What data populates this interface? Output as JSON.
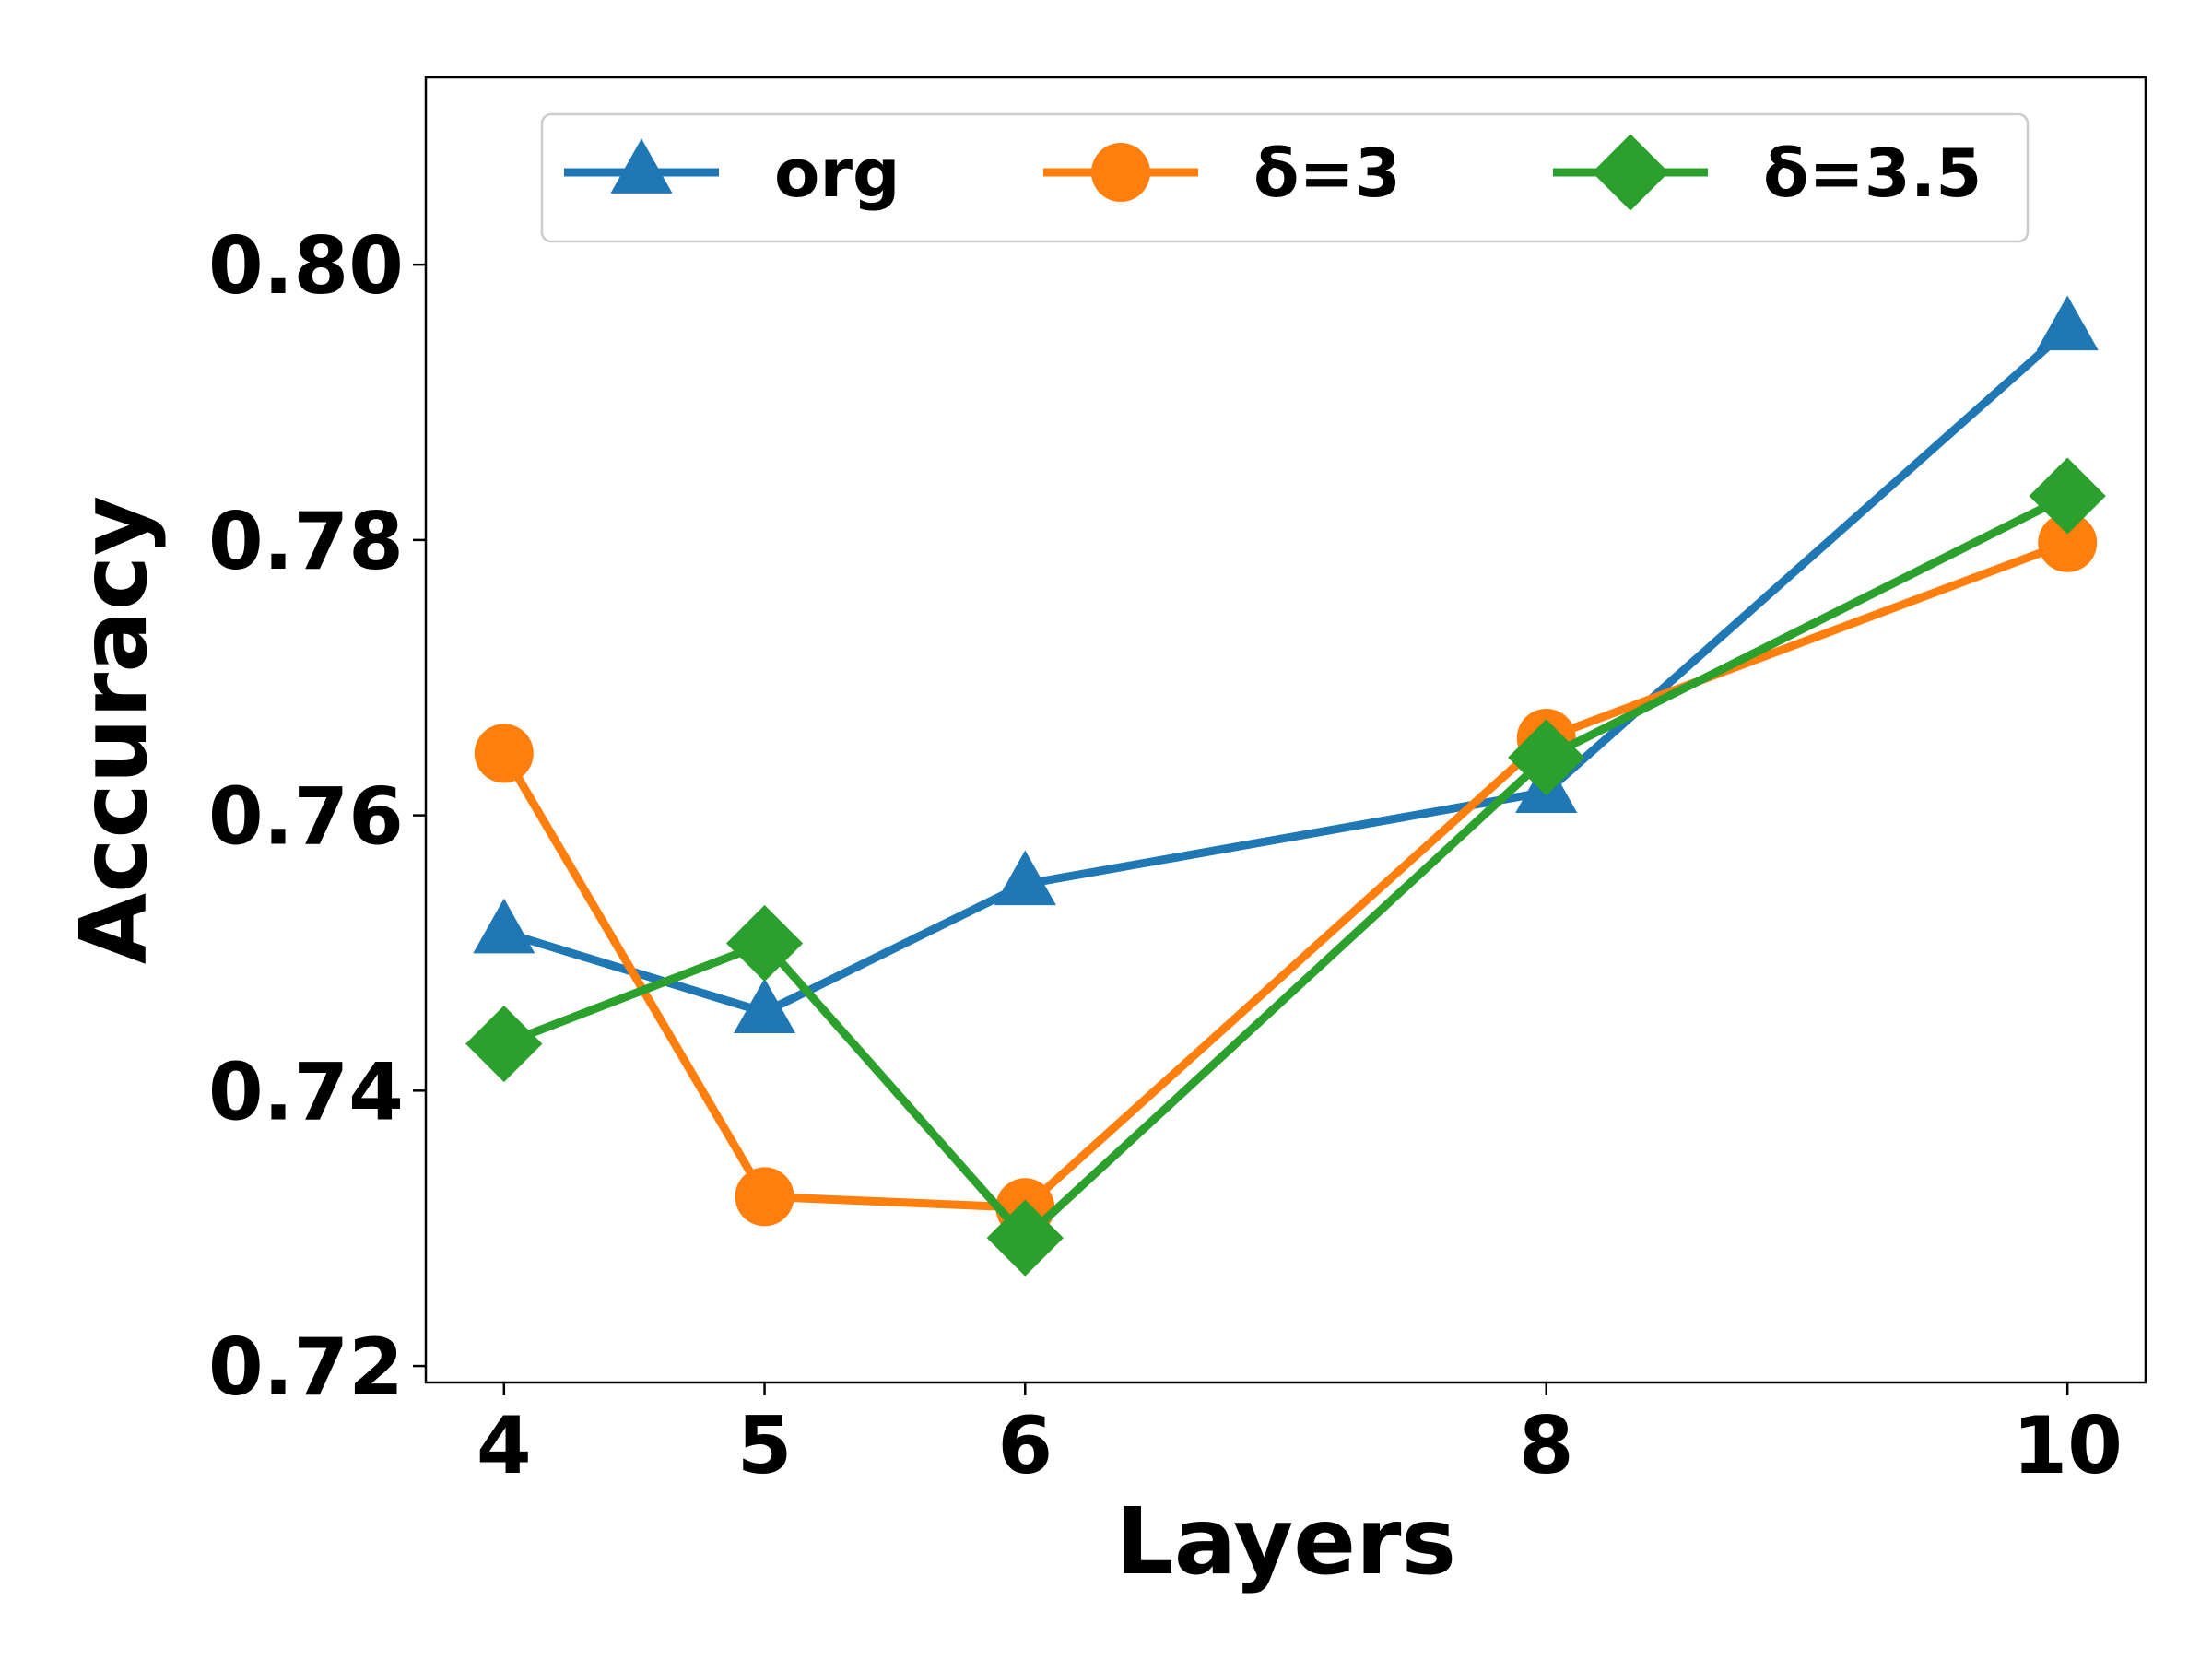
{
  "chart_data": {
    "type": "line",
    "xlabel": "Layers",
    "ylabel": "Accuracy",
    "x": [
      4,
      5,
      6,
      8,
      10
    ],
    "x_ticks": [
      "4",
      "5",
      "6",
      "8",
      "10"
    ],
    "y_ticks": [
      "0.72",
      "0.74",
      "0.76",
      "0.78",
      "0.80"
    ],
    "xlim": [
      3.7,
      10.3
    ],
    "ylim": [
      0.7188,
      0.8136
    ],
    "grid": false,
    "legend_position": "top",
    "series": [
      {
        "name": "org",
        "color": "#1f77b4",
        "marker": "triangle",
        "values": [
          0.7515,
          0.7457,
          0.755,
          0.7617,
          0.7953
        ]
      },
      {
        "name": "δ=3",
        "color": "#ff7f0e",
        "marker": "circle",
        "values": [
          0.7645,
          0.7323,
          0.7315,
          0.7656,
          0.7798
        ]
      },
      {
        "name": "δ=3.5",
        "color": "#2ca02c",
        "marker": "diamond",
        "values": [
          0.7434,
          0.7507,
          0.7293,
          0.7642,
          0.7832
        ]
      }
    ]
  }
}
